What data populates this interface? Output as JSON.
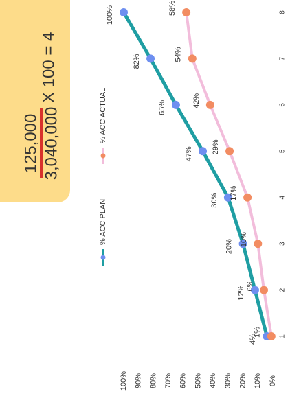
{
  "formula": {
    "numerator": "125,000",
    "denominator": "3,040,000",
    "rest": "X 100 = 4"
  },
  "chart_data": {
    "type": "line",
    "categories": [
      1,
      2,
      3,
      4,
      5,
      6,
      7,
      8
    ],
    "ylim": [
      0,
      100
    ],
    "yticks": [
      {
        "value": 0,
        "label": "0%"
      },
      {
        "value": 10,
        "label": "10%"
      },
      {
        "value": 20,
        "label": "20%"
      },
      {
        "value": 30,
        "label": "30%"
      },
      {
        "value": 40,
        "label": "40%"
      },
      {
        "value": 50,
        "label": "50%"
      },
      {
        "value": 60,
        "label": "60%"
      },
      {
        "value": 70,
        "label": "70%"
      },
      {
        "value": 80,
        "label": "80%"
      },
      {
        "value": 90,
        "label": "90%"
      },
      {
        "value": 100,
        "label": "100%"
      }
    ],
    "series": [
      {
        "name": "% ACC PLAN",
        "color": "#1f9ea3",
        "marker_color": "#6e8ff0",
        "values": [
          4,
          12,
          20,
          30,
          47,
          65,
          82,
          100
        ],
        "value_labels": [
          "4%",
          "12%",
          "20%",
          "30%",
          "47%",
          "65%",
          "82%",
          "100%"
        ]
      },
      {
        "name": "% ACC ACTUAL",
        "color": "#f2bddb",
        "marker_color": "#f28c62",
        "values": [
          1,
          6,
          10,
          17,
          29,
          42,
          54,
          58
        ],
        "value_labels": [
          "1%",
          "6%",
          "10%",
          "17%",
          "29%",
          "42%",
          "54%",
          "58%"
        ]
      }
    ]
  }
}
